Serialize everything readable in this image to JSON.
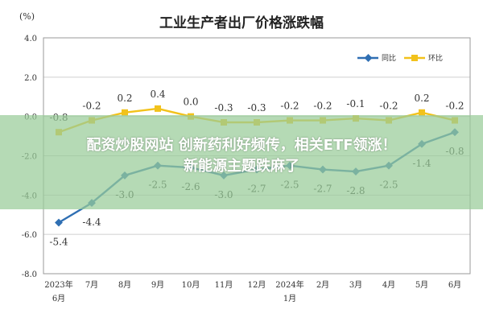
{
  "chart_data": {
    "type": "line",
    "title": "工业生产者出厂价格涨跌幅",
    "unit_label": "(%)",
    "categories": [
      "2023年6月",
      "7月",
      "8月",
      "9月",
      "10月",
      "11月",
      "12月",
      "2024年1月",
      "2月",
      "3月",
      "4月",
      "5月",
      "6月"
    ],
    "x_tick_labels": [
      [
        "2023年",
        "6月"
      ],
      [
        "7月"
      ],
      [
        "8月"
      ],
      [
        "9月"
      ],
      [
        "10月"
      ],
      [
        "11月"
      ],
      [
        "12月"
      ],
      [
        "2024年",
        "1月"
      ],
      [
        "2月"
      ],
      [
        "3月"
      ],
      [
        "4月"
      ],
      [
        "5月"
      ],
      [
        "6月"
      ]
    ],
    "ylim": [
      -8.0,
      4.0
    ],
    "y_ticks": [
      "4.0",
      "2.0",
      "0.0",
      "-2.0",
      "-4.0",
      "-6.0",
      "-8.0"
    ],
    "y_tick_values": [
      4.0,
      2.0,
      0.0,
      -2.0,
      -4.0,
      -6.0,
      -8.0
    ],
    "grid": true,
    "legend_position": "top-right",
    "series": [
      {
        "name": "同比",
        "color": "#2f6fb3",
        "values": [
          -5.4,
          -4.4,
          -3.0,
          -2.5,
          -2.6,
          -3.0,
          -2.7,
          -2.5,
          -2.7,
          -2.8,
          -2.5,
          -1.4,
          -0.8
        ],
        "labels": [
          "-5.4",
          "-4.4",
          "-3.0",
          "-2.5",
          "-2.6",
          "-3.0",
          "-2.7",
          "-2.5",
          "-2.7",
          "-2.8",
          "-2.5",
          "-1.4",
          "-0.8"
        ]
      },
      {
        "name": "环比",
        "color": "#f2c21b",
        "values": [
          -0.8,
          -0.2,
          0.2,
          0.4,
          0.0,
          -0.3,
          -0.3,
          -0.2,
          -0.2,
          -0.1,
          -0.2,
          0.2,
          -0.2
        ],
        "labels": [
          "-0.8",
          "-0.2",
          "0.2",
          "0.4",
          "0.0",
          "-0.3",
          "-0.3",
          "-0.2",
          "-0.2",
          "-0.1",
          "-0.2",
          "0.2",
          "-0.2"
        ]
      }
    ]
  },
  "overlay": {
    "line1": "配资炒股网站 创新药利好频传，相关ETF领涨！",
    "line2": "新能源主题跌麻了",
    "color": "#98cc98"
  }
}
